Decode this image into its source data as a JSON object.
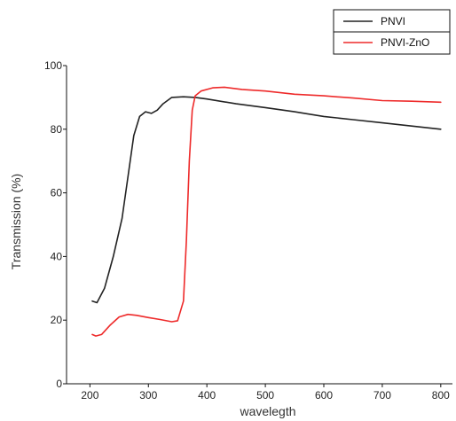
{
  "chart_data": {
    "type": "line",
    "xlabel": "wavelegth",
    "ylabel": "Transmission (%)",
    "xlim": [
      160,
      820
    ],
    "ylim": [
      0,
      100
    ],
    "xticks": [
      200,
      300,
      400,
      500,
      600,
      700,
      800
    ],
    "xtick_labels": [
      "200",
      "300",
      "400",
      "500",
      "600",
      "700",
      "800"
    ],
    "yticks": [
      0,
      20,
      40,
      60,
      80,
      100
    ],
    "ytick_labels": [
      "0",
      "20",
      "40",
      "60",
      "80",
      "100"
    ],
    "grid": false,
    "legend": "top-right",
    "series": [
      {
        "name": "PNVI",
        "color": "#222222",
        "points": [
          [
            204,
            26
          ],
          [
            212,
            25.5
          ],
          [
            225,
            30
          ],
          [
            240,
            40
          ],
          [
            255,
            52
          ],
          [
            265,
            65
          ],
          [
            275,
            78
          ],
          [
            285,
            84
          ],
          [
            295,
            85.5
          ],
          [
            305,
            85
          ],
          [
            315,
            86
          ],
          [
            325,
            88
          ],
          [
            340,
            90
          ],
          [
            360,
            90.2
          ],
          [
            380,
            90
          ],
          [
            400,
            89.5
          ],
          [
            450,
            88
          ],
          [
            500,
            86.8
          ],
          [
            550,
            85.5
          ],
          [
            600,
            84
          ],
          [
            650,
            83
          ],
          [
            700,
            82
          ],
          [
            750,
            81
          ],
          [
            800,
            80
          ]
        ]
      },
      {
        "name": "PNVI-ZnO",
        "color": "#ee2a2a",
        "points": [
          [
            204,
            15.5
          ],
          [
            210,
            15
          ],
          [
            220,
            15.5
          ],
          [
            235,
            18.5
          ],
          [
            250,
            21
          ],
          [
            265,
            21.8
          ],
          [
            280,
            21.5
          ],
          [
            300,
            20.8
          ],
          [
            320,
            20.2
          ],
          [
            340,
            19.5
          ],
          [
            350,
            19.8
          ],
          [
            360,
            26
          ],
          [
            365,
            45
          ],
          [
            370,
            70
          ],
          [
            375,
            86
          ],
          [
            380,
            90.5
          ],
          [
            390,
            92
          ],
          [
            410,
            93
          ],
          [
            430,
            93.2
          ],
          [
            460,
            92.5
          ],
          [
            500,
            92
          ],
          [
            550,
            91
          ],
          [
            600,
            90.5
          ],
          [
            650,
            89.8
          ],
          [
            700,
            89
          ],
          [
            750,
            88.8
          ],
          [
            800,
            88.5
          ]
        ]
      }
    ]
  }
}
